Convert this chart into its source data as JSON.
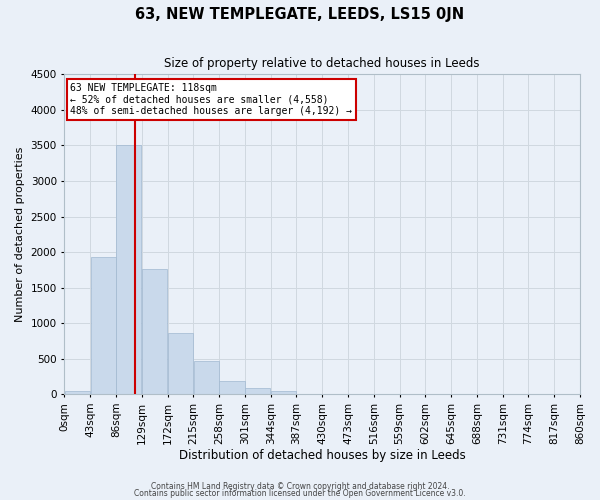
{
  "title": "63, NEW TEMPLEGATE, LEEDS, LS15 0JN",
  "subtitle": "Size of property relative to detached houses in Leeds",
  "xlabel": "Distribution of detached houses by size in Leeds",
  "ylabel": "Number of detached properties",
  "bin_edges": [
    0,
    43,
    86,
    129,
    172,
    215,
    258,
    301,
    344,
    387,
    430,
    473,
    516,
    559,
    602,
    645,
    688,
    731,
    774,
    817,
    860
  ],
  "bin_labels": [
    "0sqm",
    "43sqm",
    "86sqm",
    "129sqm",
    "172sqm",
    "215sqm",
    "258sqm",
    "301sqm",
    "344sqm",
    "387sqm",
    "430sqm",
    "473sqm",
    "516sqm",
    "559sqm",
    "602sqm",
    "645sqm",
    "688sqm",
    "731sqm",
    "774sqm",
    "817sqm",
    "860sqm"
  ],
  "bar_heights": [
    50,
    1930,
    3500,
    1760,
    860,
    460,
    185,
    90,
    50,
    0,
    0,
    0,
    0,
    0,
    0,
    0,
    0,
    0,
    0,
    0
  ],
  "bar_color": "#c9d9eb",
  "bar_edge_color": "#a0b8d0",
  "vline_x": 118,
  "vline_color": "#cc0000",
  "annotation_line1": "63 NEW TEMPLEGATE: 118sqm",
  "annotation_line2": "← 52% of detached houses are smaller (4,558)",
  "annotation_line3": "48% of semi-detached houses are larger (4,192) →",
  "annotation_box_color": "#ffffff",
  "annotation_box_edgecolor": "#cc0000",
  "ylim": [
    0,
    4500
  ],
  "grid_color": "#d0d8e0",
  "bg_color": "#eaf0f8",
  "footer1": "Contains HM Land Registry data © Crown copyright and database right 2024.",
  "footer2": "Contains public sector information licensed under the Open Government Licence v3.0."
}
